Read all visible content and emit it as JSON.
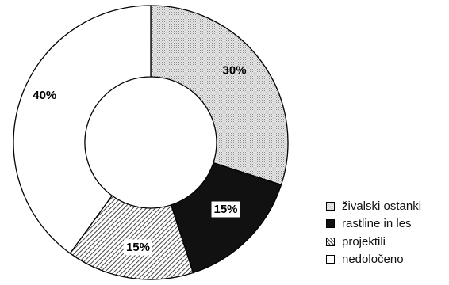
{
  "chart_data": {
    "type": "pie",
    "variant": "donut",
    "slices": [
      {
        "label": "živalski ostanki",
        "value": 30,
        "display": "30%",
        "fill": "dots",
        "color": "#d4d4d4"
      },
      {
        "label": "rastline in les",
        "value": 15,
        "display": "15%",
        "fill": "solid",
        "color": "#111111"
      },
      {
        "label": "projektili",
        "value": 15,
        "display": "15%",
        "fill": "hatch",
        "color": "#777777"
      },
      {
        "label": "nedoločeno",
        "value": 40,
        "display": "40%",
        "fill": "none",
        "color": "#ffffff"
      }
    ],
    "legend_position": "bottom-right",
    "start_angle": "12 o'clock",
    "direction": "clockwise"
  }
}
